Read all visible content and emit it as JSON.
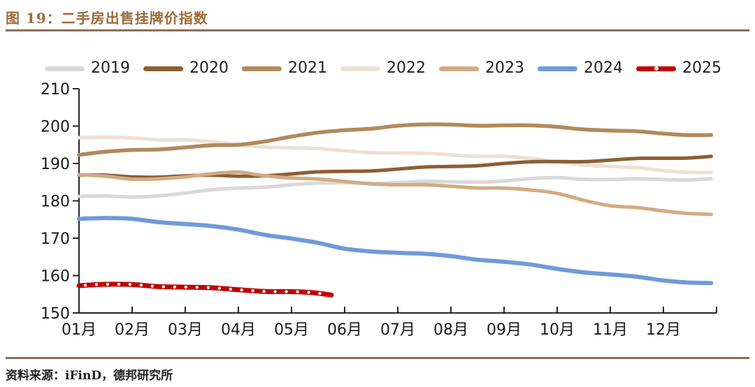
{
  "figure": {
    "title": "图 19：二手房出售挂牌价指数",
    "source": "资料来源：iFinD，德邦研究所"
  },
  "colors": {
    "title_brown": "#9c6b3a",
    "rule_brown": "#8d6e55",
    "axis": "#262626",
    "label_text": "#1a1a1a"
  },
  "chart_data": {
    "type": "line",
    "title": "二手房出售挂牌价指数",
    "xlabel": "",
    "ylabel": "",
    "x_tick_labels": [
      "01月",
      "02月",
      "03月",
      "04月",
      "05月",
      "06月",
      "07月",
      "08月",
      "09月",
      "10月",
      "11月",
      "12月"
    ],
    "x_unit": "month_index_0_is_01月",
    "ylim": [
      150,
      210
    ],
    "yticks": [
      150,
      160,
      170,
      180,
      190,
      200,
      210
    ],
    "grid": false,
    "legend_position": "top",
    "series": [
      {
        "name": "2019",
        "color": "#d9d9d9",
        "width": 5,
        "x": [
          0,
          1,
          2,
          3,
          4,
          5,
          6,
          7,
          8,
          9,
          10,
          11,
          11.9
        ],
        "values": [
          181.2,
          181.0,
          182.1,
          183.4,
          184.3,
          184.8,
          184.9,
          185.1,
          185.3,
          186.2,
          185.7,
          185.7,
          185.9
        ]
      },
      {
        "name": "2020",
        "color": "#8c5f35",
        "width": 5,
        "x": [
          0,
          1,
          2,
          3,
          4,
          5,
          6,
          7,
          8,
          9,
          10,
          11,
          11.9
        ],
        "values": [
          186.9,
          186.4,
          186.7,
          186.6,
          187.2,
          187.9,
          188.5,
          189.2,
          190.0,
          190.5,
          190.9,
          191.4,
          191.9
        ]
      },
      {
        "name": "2021",
        "color": "#b08a5c",
        "width": 5.5,
        "x": [
          0,
          1,
          2,
          3,
          4,
          5,
          6,
          7,
          8,
          9,
          10,
          11,
          11.9
        ],
        "values": [
          192.3,
          193.6,
          194.3,
          195.0,
          197.2,
          198.9,
          200.1,
          200.4,
          200.2,
          199.8,
          198.8,
          198.0,
          197.6
        ]
      },
      {
        "name": "2022",
        "color": "#ece1d2",
        "width": 5,
        "x": [
          0,
          1,
          2,
          3,
          4,
          5,
          6,
          7,
          8,
          9,
          10,
          11,
          11.9
        ],
        "values": [
          196.9,
          196.8,
          196.3,
          195.0,
          194.2,
          193.4,
          192.8,
          192.3,
          191.9,
          190.4,
          189.2,
          188.1,
          187.6
        ]
      },
      {
        "name": "2023",
        "color": "#d2ab81",
        "width": 5,
        "x": [
          0,
          1,
          2,
          3,
          4,
          5,
          6,
          7,
          8,
          9,
          10,
          11,
          11.9
        ],
        "values": [
          187.0,
          185.8,
          186.4,
          187.7,
          186.1,
          185.2,
          184.3,
          183.9,
          183.4,
          182.0,
          178.7,
          177.3,
          176.4
        ]
      },
      {
        "name": "2024",
        "color": "#6f9ad9",
        "width": 6,
        "x": [
          0,
          1,
          2,
          3,
          4,
          5,
          6,
          7,
          8,
          9,
          10,
          11,
          11.9
        ],
        "values": [
          175.2,
          175.2,
          173.8,
          172.3,
          169.9,
          167.2,
          166.1,
          165.2,
          163.7,
          161.8,
          160.3,
          158.7,
          158.0
        ]
      },
      {
        "name": "2025",
        "color": "#c00000",
        "width": 7,
        "marker": "white-dot-dash",
        "x": [
          0,
          1,
          2,
          3,
          4,
          4.75
        ],
        "values": [
          157.3,
          157.6,
          156.9,
          156.2,
          155.7,
          154.8
        ]
      }
    ]
  }
}
